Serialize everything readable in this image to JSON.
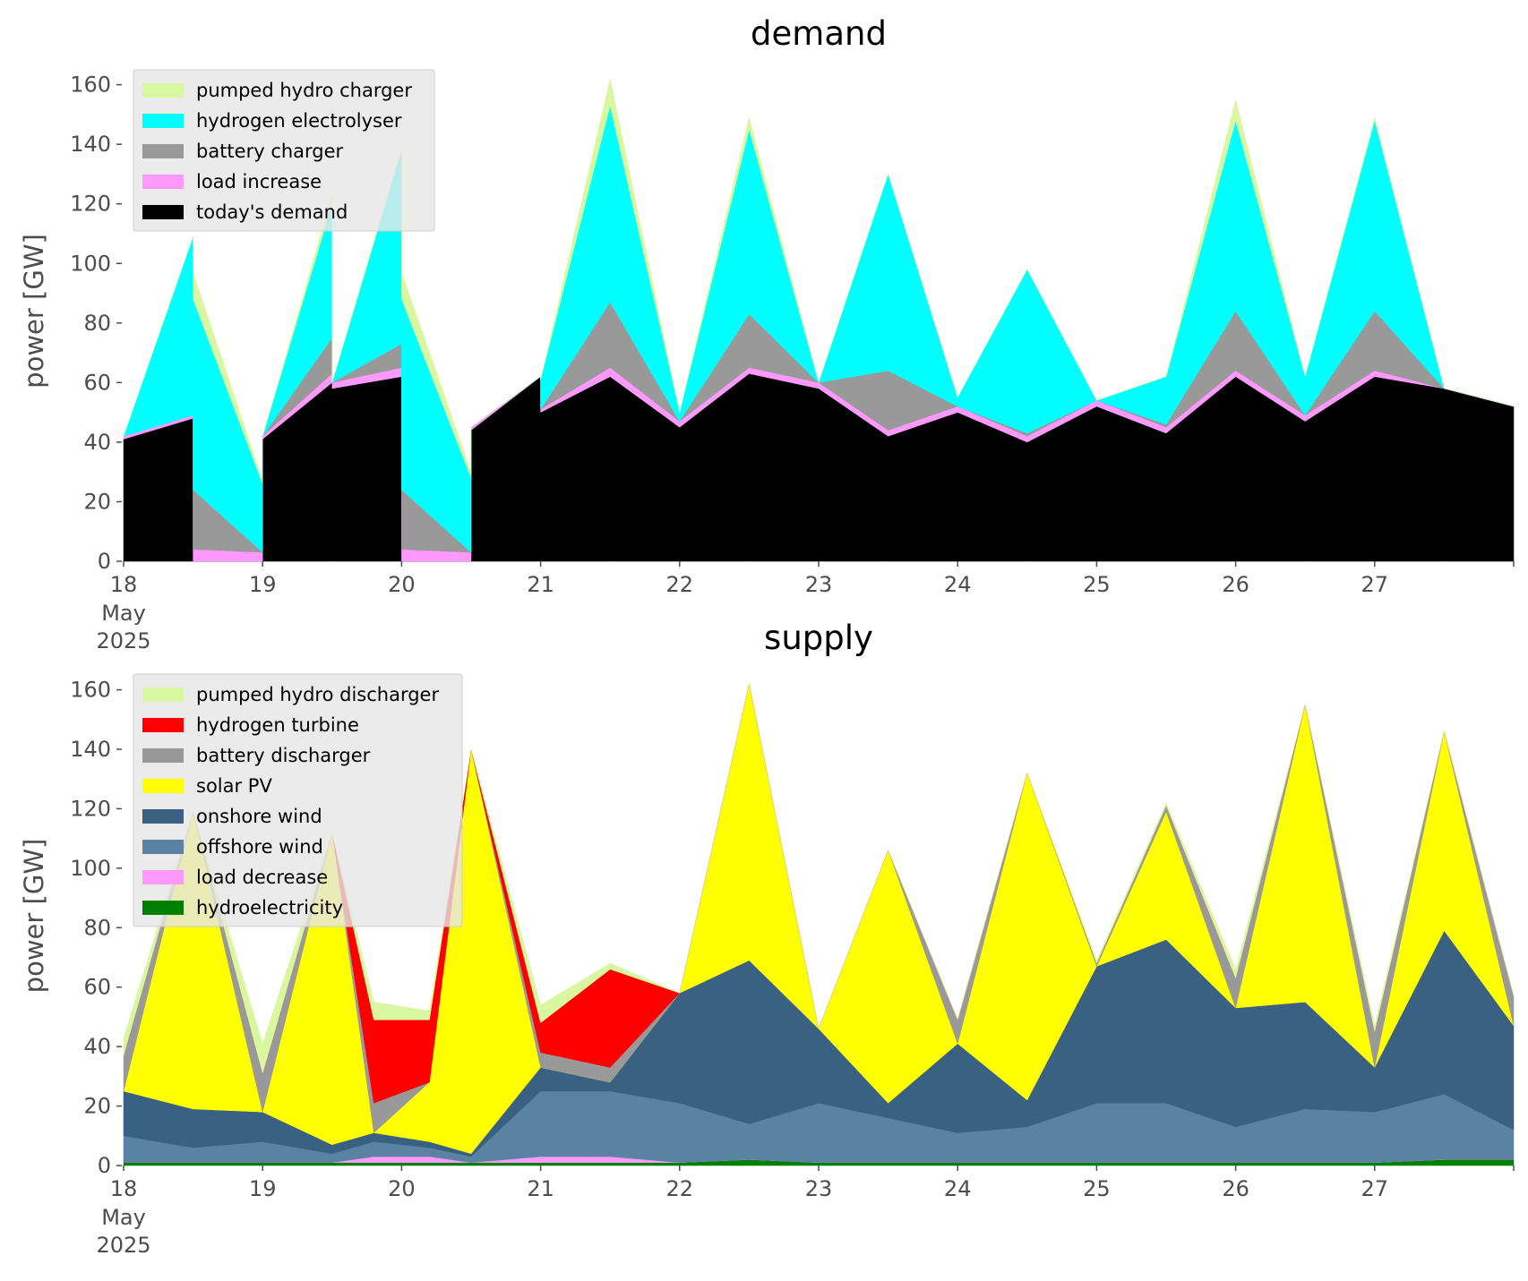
{
  "chart_data": [
    {
      "type": "area",
      "title": "demand",
      "ylabel": "power [GW]",
      "ylim": [
        0,
        168
      ],
      "yticks": [
        "0",
        "20",
        "40",
        "60",
        "80",
        "100",
        "120",
        "140",
        "160"
      ],
      "xticks": [
        "18",
        "19",
        "20",
        "21",
        "22",
        "23",
        "24",
        "25",
        "26",
        "27"
      ],
      "xtick_sub": [
        "May",
        "2025"
      ],
      "x_unit": "days from 18 May 2025",
      "legend_position": "upper-left",
      "legend": [
        {
          "name": "pumped hydro charger",
          "color": "#d9f7a0"
        },
        {
          "name": "hydrogen electrolyser",
          "color": "#00ffff"
        },
        {
          "name": "battery charger",
          "color": "#999999"
        },
        {
          "name": "load increase",
          "color": "#ff99ff"
        },
        {
          "name": "today's demand",
          "color": "#000000"
        }
      ],
      "x": [
        0,
        0.5,
        0.5,
        1,
        1,
        1.5,
        1.5,
        2,
        2,
        2.5,
        2.5,
        3,
        3,
        3.5,
        4,
        4.5,
        5,
        5.5,
        6,
        6.5,
        7,
        7.5,
        8,
        8.5,
        9,
        9.5,
        10
      ],
      "series": [
        {
          "name": "today's demand",
          "color": "#000000",
          "values": [
            41,
            48,
            0,
            0,
            41,
            60,
            58,
            62,
            0,
            0,
            44,
            62,
            50,
            62,
            45,
            63,
            58,
            42,
            50,
            40,
            52,
            43,
            62,
            47,
            62,
            58,
            52
          ]
        },
        {
          "name": "load increase",
          "color": "#ff99ff",
          "values": [
            1,
            1,
            4,
            3,
            1,
            3,
            2,
            3,
            4,
            3,
            1,
            0,
            1,
            3,
            2,
            2,
            2,
            2,
            2,
            2,
            2,
            2,
            2,
            2,
            2,
            0,
            0
          ]
        },
        {
          "name": "battery charger",
          "color": "#999999",
          "values": [
            0,
            0,
            20,
            0,
            0,
            12,
            0,
            8,
            20,
            0,
            0,
            0,
            0,
            22,
            0,
            18,
            0,
            20,
            0,
            1,
            0,
            1,
            20,
            0,
            20,
            0,
            0
          ]
        },
        {
          "name": "hydrogen electrolyser",
          "color": "#00ffff",
          "values": [
            0,
            60,
            64,
            23,
            0,
            45,
            0,
            65,
            64,
            25,
            0,
            0,
            10,
            66,
            3,
            62,
            0,
            66,
            3,
            55,
            0,
            16,
            64,
            13,
            64,
            0,
            0
          ]
        },
        {
          "name": "pumped hydro charger",
          "color": "#d9f7a0",
          "values": [
            0,
            0,
            9,
            1,
            0,
            3,
            0,
            1,
            9,
            2,
            0,
            0,
            0,
            9,
            0,
            4,
            0,
            0,
            0,
            0,
            0,
            0,
            7,
            0,
            1,
            0,
            0
          ]
        }
      ]
    },
    {
      "type": "area",
      "title": "supply",
      "ylabel": "power [GW]",
      "ylim": [
        0,
        168
      ],
      "yticks": [
        "0",
        "20",
        "40",
        "60",
        "80",
        "100",
        "120",
        "140",
        "160"
      ],
      "xticks": [
        "18",
        "19",
        "20",
        "21",
        "22",
        "23",
        "24",
        "25",
        "26",
        "27"
      ],
      "xtick_sub": [
        "May",
        "2025"
      ],
      "x_unit": "days from 18 May 2025",
      "legend_position": "upper-left",
      "legend": [
        {
          "name": "pumped hydro discharger",
          "color": "#d9f7a0"
        },
        {
          "name": "hydrogen turbine",
          "color": "#ff0000"
        },
        {
          "name": "battery discharger",
          "color": "#999999"
        },
        {
          "name": "solar PV",
          "color": "#ffff00"
        },
        {
          "name": "onshore wind",
          "color": "#3b6182"
        },
        {
          "name": "offshore wind",
          "color": "#5c82a3"
        },
        {
          "name": "load decrease",
          "color": "#ff99ff"
        },
        {
          "name": "hydroelectricity",
          "color": "#008000"
        }
      ],
      "x": [
        0,
        0.5,
        1,
        1.5,
        1.8,
        2.2,
        2.5,
        3,
        3.5,
        4,
        4.5,
        5,
        5.5,
        6,
        6.5,
        7,
        7.5,
        8,
        8.5,
        9,
        9.5,
        10
      ],
      "series": [
        {
          "name": "hydroelectricity",
          "color": "#008000",
          "values": [
            1,
            1,
            1,
            1,
            1,
            1,
            1,
            1,
            1,
            1,
            2,
            1,
            1,
            1,
            1,
            1,
            1,
            1,
            1,
            1,
            2,
            2
          ]
        },
        {
          "name": "load decrease",
          "color": "#ff99ff",
          "values": [
            0,
            0,
            0,
            0,
            2,
            2,
            0,
            2,
            2,
            0,
            0,
            0,
            0,
            0,
            0,
            0,
            0,
            0,
            0,
            0,
            0,
            0
          ]
        },
        {
          "name": "offshore wind",
          "color": "#5c82a3",
          "values": [
            9,
            5,
            7,
            3,
            5,
            3,
            2,
            22,
            22,
            20,
            12,
            20,
            15,
            10,
            12,
            20,
            20,
            12,
            18,
            17,
            22,
            10
          ]
        },
        {
          "name": "onshore wind",
          "color": "#3b6182",
          "values": [
            15,
            13,
            10,
            3,
            3,
            2,
            1,
            8,
            3,
            37,
            55,
            25,
            5,
            30,
            9,
            46,
            55,
            40,
            36,
            15,
            55,
            35
          ]
        },
        {
          "name": "solar PV",
          "color": "#ffff00",
          "values": [
            0,
            100,
            0,
            105,
            0,
            20,
            136,
            0,
            0,
            0,
            93,
            0,
            85,
            0,
            110,
            0,
            43,
            0,
            100,
            0,
            67,
            0
          ]
        },
        {
          "name": "battery discharger",
          "color": "#999999",
          "values": [
            12,
            0,
            13,
            0,
            10,
            0,
            0,
            5,
            5,
            0,
            0,
            0,
            0,
            8,
            0,
            1,
            2,
            10,
            0,
            12,
            0,
            10
          ]
        },
        {
          "name": "hydrogen turbine",
          "color": "#ff0000",
          "values": [
            0,
            0,
            0,
            0,
            28,
            21,
            0,
            10,
            33,
            0,
            0,
            0,
            0,
            0,
            0,
            0,
            0,
            0,
            0,
            0,
            0,
            0
          ]
        },
        {
          "name": "pumped hydro discharger",
          "color": "#d9f7a0",
          "values": [
            6,
            0,
            10,
            0,
            6,
            3,
            0,
            6,
            2,
            0,
            0,
            0,
            0,
            0,
            0,
            1,
            1,
            3,
            0,
            2,
            0,
            0
          ]
        }
      ]
    }
  ]
}
